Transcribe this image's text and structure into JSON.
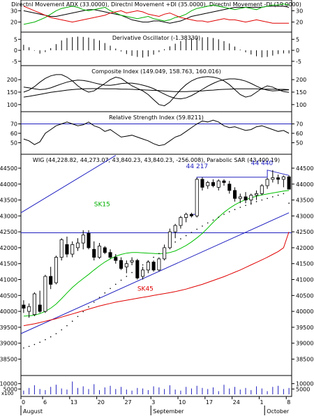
{
  "chart_data": [
    {
      "panel": "dmi",
      "type": "line",
      "title": "Directnl Movement ADX (33.0000), Directnl Movement +DI (35.0000), Directnl Movement -DI (19.0000)",
      "ylim": [
        13,
        37
      ],
      "ticks": [
        20,
        30
      ],
      "series": [
        {
          "name": "ADX",
          "color": "#000000",
          "values": [
            30,
            29,
            28,
            27,
            26,
            25,
            25,
            26,
            27,
            28,
            29,
            30,
            31,
            31,
            30,
            29,
            28,
            27,
            26,
            24,
            22,
            21,
            20,
            20,
            21,
            21,
            20,
            19,
            20,
            21,
            23,
            25,
            26,
            27,
            28,
            29,
            30,
            31,
            32,
            33,
            33,
            33,
            33,
            33,
            33,
            34,
            34,
            34,
            34,
            33
          ]
        },
        {
          "name": "+DI",
          "color": "#00b000",
          "values": [
            18,
            19,
            20,
            22,
            24,
            27,
            30,
            32,
            33,
            34,
            33,
            31,
            30,
            31,
            32,
            33,
            30,
            28,
            26,
            25,
            24,
            23,
            24,
            25,
            23,
            22,
            21,
            22,
            24,
            25,
            27,
            30,
            32,
            33,
            34,
            35,
            34,
            33,
            32,
            31,
            32,
            33,
            32,
            31,
            33,
            34,
            35,
            35,
            36,
            35
          ]
        },
        {
          "name": "-DI",
          "color": "#e00000",
          "values": [
            34,
            32,
            30,
            28,
            26,
            24,
            23,
            22,
            21,
            20,
            21,
            22,
            23,
            24,
            25,
            26,
            28,
            29,
            30,
            28,
            29,
            30,
            29,
            27,
            26,
            25,
            27,
            28,
            26,
            24,
            23,
            22,
            21,
            21,
            20,
            21,
            22,
            23,
            22,
            22,
            21,
            20,
            21,
            22,
            21,
            20,
            19,
            19,
            19,
            19
          ]
        }
      ]
    },
    {
      "panel": "oscillator",
      "type": "bar",
      "title": "Derivative Oscillator (-1.38330)",
      "ylim": [
        -6,
        7
      ],
      "ticks": [
        -5,
        0,
        5
      ],
      "values": [
        2.5,
        1.4,
        -0.2,
        -1.5,
        -0.8,
        1,
        2.8,
        4.5,
        5.6,
        6,
        6.2,
        6.1,
        5.8,
        5.2,
        4.5,
        3.3,
        2.1,
        0.8,
        -0.5,
        -1.7,
        -2.5,
        -3,
        -3.3,
        -2.8,
        -2,
        -0.8,
        0.5,
        1.8,
        3,
        4.2,
        5,
        5.6,
        5.8,
        5.9,
        6,
        5.6,
        5,
        4.2,
        3.1,
        1.7,
        0.3,
        -0.9,
        -1.9,
        -2.7,
        -3.2,
        -3,
        -2.4,
        -1.7,
        -1.4,
        -1.4
      ]
    },
    {
      "panel": "composite",
      "type": "line",
      "title": "Composite Index (149.049, 158.763, 160.016)",
      "ylim": [
        80,
        245
      ],
      "ticks": [
        100,
        150,
        200
      ],
      "series": [
        {
          "name": "Composite Index",
          "color": "#000000",
          "values": [
            150,
            158,
            172,
            190,
            205,
            215,
            220,
            220,
            210,
            195,
            175,
            160,
            150,
            155,
            170,
            185,
            200,
            210,
            205,
            190,
            175,
            165,
            155,
            140,
            120,
            100,
            95,
            110,
            135,
            160,
            180,
            195,
            205,
            210,
            212,
            210,
            205,
            195,
            180,
            160,
            140,
            130,
            135,
            150,
            165,
            175,
            170,
            160,
            152,
            149
          ]
        },
        {
          "name": "Average 1",
          "color": "#000000",
          "values": [
            170,
            167,
            163,
            160,
            162,
            167,
            175,
            183,
            190,
            195,
            198,
            197,
            193,
            187,
            182,
            178,
            177,
            180,
            184,
            186,
            186,
            183,
            178,
            172,
            164,
            153,
            142,
            132,
            125,
            123,
            127,
            136,
            148,
            161,
            174,
            185,
            194,
            200,
            203,
            203,
            200,
            194,
            185,
            174,
            164,
            158,
            155,
            156,
            158,
            159
          ]
        },
        {
          "name": "Average 2",
          "color": "#000000",
          "values": [
            130,
            133,
            137,
            141,
            145,
            149,
            152,
            155,
            158,
            160,
            162,
            163,
            164,
            164,
            164,
            163,
            163,
            163,
            162,
            162,
            161,
            160,
            159,
            158,
            157,
            156,
            154,
            153,
            152,
            152,
            152,
            153,
            154,
            155,
            157,
            158,
            160,
            161,
            162,
            163,
            163,
            163,
            163,
            163,
            162,
            162,
            162,
            161,
            161,
            160
          ]
        }
      ]
    },
    {
      "panel": "rsi",
      "type": "line",
      "title": "Relative Strength Index (59.8211)",
      "ylim": [
        40,
        80
      ],
      "ticks": [
        50,
        60,
        70
      ],
      "reference_line": 70,
      "values": [
        54,
        52,
        48,
        51,
        60,
        64,
        68,
        70,
        72,
        70,
        68,
        69,
        72,
        68,
        66,
        62,
        64,
        60,
        56,
        57,
        58,
        56,
        54,
        52,
        49,
        47,
        48,
        52,
        56,
        58,
        62,
        66,
        70,
        73,
        72,
        74,
        72,
        68,
        66,
        67,
        65,
        63,
        64,
        67,
        68,
        66,
        64,
        62,
        63,
        60
      ]
    },
    {
      "panel": "price",
      "type": "candlestick",
      "title": "WIG (44,228.82, 44,273.07, 43,840.23, 43,840.23, -256.008), Parabolic SAR (43,400.19)",
      "ylim": [
        38050,
        44850
      ],
      "ticks": [
        38500,
        39000,
        39500,
        40000,
        40500,
        41000,
        41500,
        42000,
        42500,
        43000,
        43500,
        44000,
        44500
      ],
      "annotations": {
        "high_label": "44 440",
        "mid_label": "44 217",
        "sma_short_label": "SK15",
        "sma_long_label": "SK45"
      },
      "horizontal_line": 42470,
      "trendlines": [
        {
          "from": [
            0,
            43100
          ],
          "to": [
            17,
            44900
          ]
        },
        {
          "from": [
            0,
            39300
          ],
          "to": [
            49,
            43100
          ]
        }
      ],
      "candles": [
        {
          "o": 40200,
          "h": 40350,
          "l": 39950,
          "c": 40100
        },
        {
          "o": 40000,
          "h": 40250,
          "l": 39800,
          "c": 40150
        },
        {
          "o": 39900,
          "h": 40600,
          "l": 39850,
          "c": 40550
        },
        {
          "o": 40200,
          "h": 40650,
          "l": 39950,
          "c": 40000
        },
        {
          "o": 40000,
          "h": 41150,
          "l": 39950,
          "c": 41100
        },
        {
          "o": 41100,
          "h": 41400,
          "l": 40700,
          "c": 40850
        },
        {
          "o": 40900,
          "h": 41750,
          "l": 40850,
          "c": 41700
        },
        {
          "o": 41700,
          "h": 42300,
          "l": 41600,
          "c": 42250
        },
        {
          "o": 42100,
          "h": 42350,
          "l": 41700,
          "c": 41800
        },
        {
          "o": 41800,
          "h": 42200,
          "l": 41700,
          "c": 42100
        },
        {
          "o": 42000,
          "h": 42300,
          "l": 41900,
          "c": 42150
        },
        {
          "o": 42150,
          "h": 42550,
          "l": 41950,
          "c": 42400
        },
        {
          "o": 42450,
          "h": 42550,
          "l": 41950,
          "c": 42000
        },
        {
          "o": 41950,
          "h": 42200,
          "l": 41600,
          "c": 41700
        },
        {
          "o": 41700,
          "h": 42150,
          "l": 41650,
          "c": 42050
        },
        {
          "o": 42000,
          "h": 42050,
          "l": 41800,
          "c": 41850
        },
        {
          "o": 41850,
          "h": 41950,
          "l": 41650,
          "c": 41700
        },
        {
          "o": 41700,
          "h": 41800,
          "l": 41500,
          "c": 41600
        },
        {
          "o": 41600,
          "h": 41700,
          "l": 41300,
          "c": 41350
        },
        {
          "o": 41400,
          "h": 41600,
          "l": 41200,
          "c": 41500
        },
        {
          "o": 41550,
          "h": 41700,
          "l": 41450,
          "c": 41600
        },
        {
          "o": 41600,
          "h": 41650,
          "l": 41000,
          "c": 41050
        },
        {
          "o": 41100,
          "h": 41400,
          "l": 41000,
          "c": 41300
        },
        {
          "o": 41300,
          "h": 41600,
          "l": 41200,
          "c": 41550
        },
        {
          "o": 41550,
          "h": 41600,
          "l": 41250,
          "c": 41300
        },
        {
          "o": 41300,
          "h": 41700,
          "l": 41250,
          "c": 41650
        },
        {
          "o": 41650,
          "h": 42100,
          "l": 41600,
          "c": 42000
        },
        {
          "o": 42000,
          "h": 42600,
          "l": 41950,
          "c": 42500
        },
        {
          "o": 42500,
          "h": 42750,
          "l": 42300,
          "c": 42700
        },
        {
          "o": 42700,
          "h": 43000,
          "l": 42600,
          "c": 42950
        },
        {
          "o": 42950,
          "h": 43100,
          "l": 42800,
          "c": 43050
        },
        {
          "o": 43050,
          "h": 43100,
          "l": 42950,
          "c": 43000
        },
        {
          "o": 43000,
          "h": 44200,
          "l": 42950,
          "c": 44150
        },
        {
          "o": 44150,
          "h": 44217,
          "l": 43800,
          "c": 43900
        },
        {
          "o": 43950,
          "h": 44100,
          "l": 43850,
          "c": 44050
        },
        {
          "o": 44050,
          "h": 44150,
          "l": 43900,
          "c": 43950
        },
        {
          "o": 43900,
          "h": 44150,
          "l": 43800,
          "c": 44100
        },
        {
          "o": 44100,
          "h": 44150,
          "l": 43950,
          "c": 44050
        },
        {
          "o": 44000,
          "h": 44100,
          "l": 43700,
          "c": 43800
        },
        {
          "o": 43800,
          "h": 43900,
          "l": 43450,
          "c": 43550
        },
        {
          "o": 43550,
          "h": 43700,
          "l": 43400,
          "c": 43600
        },
        {
          "o": 43600,
          "h": 43750,
          "l": 43400,
          "c": 43500
        },
        {
          "o": 43500,
          "h": 43700,
          "l": 43350,
          "c": 43650
        },
        {
          "o": 43650,
          "h": 43800,
          "l": 43500,
          "c": 43700
        },
        {
          "o": 43700,
          "h": 44000,
          "l": 43650,
          "c": 43950
        },
        {
          "o": 43950,
          "h": 44200,
          "l": 43850,
          "c": 44150
        },
        {
          "o": 44150,
          "h": 44440,
          "l": 44050,
          "c": 44200
        },
        {
          "o": 44200,
          "h": 44300,
          "l": 44000,
          "c": 44150
        },
        {
          "o": 44150,
          "h": 44273,
          "l": 43900,
          "c": 44229
        },
        {
          "o": 44229,
          "h": 44273,
          "l": 43840,
          "c": 43840
        }
      ],
      "series": [
        {
          "name": "SK15",
          "color": "#00c000",
          "values": [
            39850,
            39860,
            39880,
            39930,
            40000,
            40100,
            40230,
            40400,
            40580,
            40750,
            40900,
            41030,
            41160,
            41300,
            41430,
            41550,
            41650,
            41730,
            41790,
            41830,
            41850,
            41850,
            41840,
            41830,
            41820,
            41810,
            41820,
            41850,
            41900,
            41980,
            42070,
            42180,
            42310,
            42450,
            42620,
            42800,
            42960,
            43110,
            43240,
            43350,
            43440,
            43510,
            43570,
            43620,
            43660,
            43690,
            43720,
            43750,
            43780,
            43800
          ]
        },
        {
          "name": "SK45",
          "color": "#e00000",
          "values": [
            39550,
            39580,
            39610,
            39650,
            39690,
            39730,
            39770,
            39820,
            39870,
            39920,
            39970,
            40020,
            40070,
            40120,
            40170,
            40210,
            40250,
            40290,
            40320,
            40350,
            40380,
            40410,
            40440,
            40470,
            40500,
            40530,
            40560,
            40590,
            40620,
            40660,
            40700,
            40750,
            40800,
            40850,
            40910,
            40970,
            41030,
            41090,
            41160,
            41230,
            41300,
            41380,
            41460,
            41540,
            41620,
            41700,
            41790,
            41880,
            42000,
            42500
          ]
        },
        {
          "name": "Parabolic SAR",
          "color": "#000000",
          "values": [
            38850,
            38900,
            38960,
            39030,
            39110,
            39200,
            39300,
            39420,
            39550,
            39690,
            39840,
            39990,
            40140,
            40290,
            40440,
            40580,
            40720,
            40850,
            40980,
            41100,
            41220,
            41340,
            41460,
            41580,
            41700,
            41820,
            41940,
            42060,
            42180,
            42280,
            42380,
            42480,
            42580,
            42680,
            42780,
            42870,
            42960,
            43050,
            43130,
            43200,
            43270,
            43330,
            43390,
            43450,
            43500,
            43550,
            43600,
            43650,
            43700,
            43400
          ]
        }
      ]
    },
    {
      "panel": "volume",
      "type": "bar",
      "ylim": [
        0,
        15000
      ],
      "ticks": [
        5000,
        10000
      ],
      "unit_label": "x100",
      "values": [
        3500,
        6000,
        8500,
        5000,
        4000,
        7000,
        9000,
        5500,
        4500,
        12000,
        6000,
        7500,
        5000,
        9500,
        4000,
        6500,
        8000,
        5000,
        7000,
        4500,
        3500,
        6000,
        5500,
        4000,
        7500,
        6500,
        5000,
        8500,
        4500,
        3500,
        7000,
        5500,
        8000,
        6000,
        5000,
        6500,
        3000,
        9000,
        5500,
        7000,
        4500,
        6000,
        4000,
        7500,
        5500,
        3000,
        7000,
        8000,
        5000,
        6000
      ]
    },
    {
      "panel": "x_axis",
      "type": "axis",
      "ticks": [
        {
          "label": "0",
          "index": 0
        },
        {
          "label": "6",
          "index": 4
        },
        {
          "label": "13",
          "index": 9
        },
        {
          "label": "20",
          "index": 14
        },
        {
          "label": "27",
          "index": 19
        },
        {
          "label": "3",
          "index": 24
        },
        {
          "label": "10",
          "index": 29
        },
        {
          "label": "17",
          "index": 34
        },
        {
          "label": "24",
          "index": 39
        },
        {
          "label": "1",
          "index": 44
        },
        {
          "label": "8",
          "index": 49
        }
      ],
      "months": [
        {
          "label": "August",
          "index": 0
        },
        {
          "label": "September",
          "index": 24
        },
        {
          "label": "October",
          "index": 45
        }
      ]
    }
  ]
}
